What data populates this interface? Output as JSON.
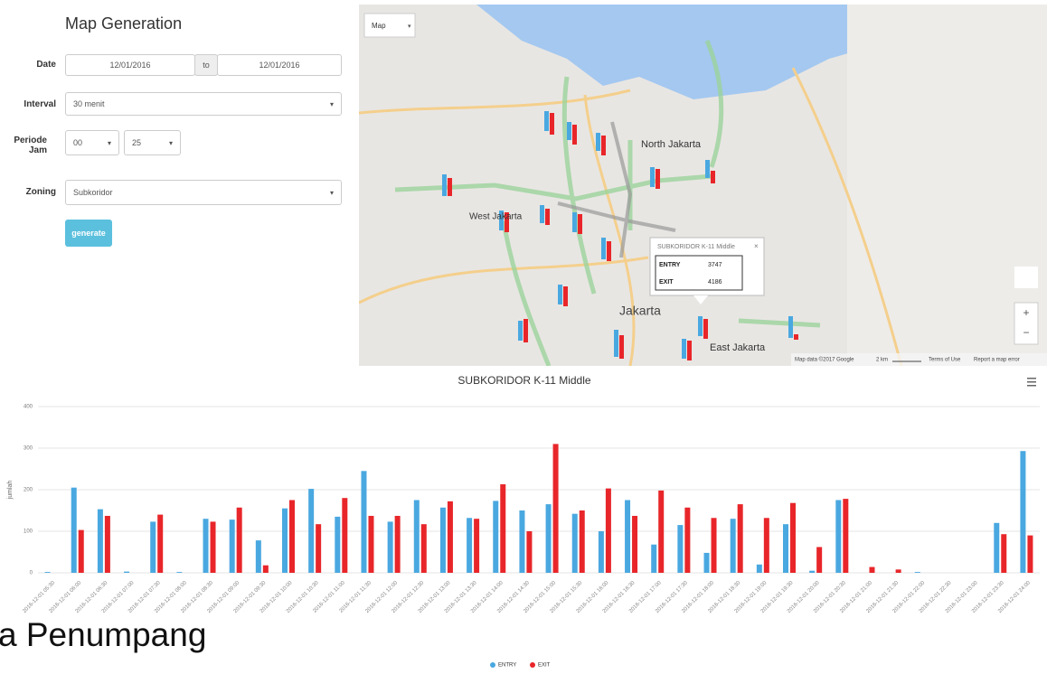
{
  "form": {
    "title": "Map Generation",
    "date_label": "Date",
    "date_from": "12/01/2016",
    "date_sep": "to",
    "date_to": "12/01/2016",
    "interval_label": "Interval",
    "interval": "30 menit",
    "period_label": "Periode Jam",
    "period_from": "00",
    "period_to": "25",
    "zoning_label": "Zoning",
    "zoning": "Subkoridor",
    "button": "generate"
  },
  "map": {
    "type_select": "Map",
    "areas": [
      "North Jakarta",
      "West Jakarta",
      "Jakarta",
      "East Jakarta"
    ],
    "popup": {
      "title": "SUBKORIDOR K-11 Middle",
      "rows": [
        [
          "ENTRY",
          "3747"
        ],
        [
          "EXIT",
          "4186"
        ]
      ]
    },
    "attribution": "Map data ©2017 Google",
    "scale": "2 km",
    "terms": "Terms of Use",
    "report": "Report a map error"
  },
  "chart_data": {
    "type": "bar",
    "title": "SUBKORIDOR K-11 Middle",
    "y_label": "jumlah",
    "categories": [
      "2016-12-01 05:30",
      "2016-12-01 06:00",
      "2016-12-01 06:30",
      "2016-12-01 07:00",
      "2016-12-01 07:30",
      "2016-12-01 08:00",
      "2016-12-01 08:30",
      "2016-12-01 09:00",
      "2016-12-01 09:30",
      "2016-12-01 10:00",
      "2016-12-01 10:30",
      "2016-12-01 11:00",
      "2016-12-01 11:30",
      "2016-12-01 12:00",
      "2016-12-01 12:30",
      "2016-12-01 13:00",
      "2016-12-01 13:30",
      "2016-12-01 14:00",
      "2016-12-01 14:30",
      "2016-12-01 15:00",
      "2016-12-01 15:30",
      "2016-12-01 16:00",
      "2016-12-01 16:30",
      "2016-12-01 17:00",
      "2016-12-01 17:30",
      "2016-12-01 18:00",
      "2016-12-01 18:30",
      "2016-12-01 19:00",
      "2016-12-01 19:30",
      "2016-12-01 20:00",
      "2016-12-01 20:30",
      "2016-12-01 21:00",
      "2016-12-01 21:30",
      "2016-12-01 22:00",
      "2016-12-01 22:30",
      "2016-12-01 23:00",
      "2016-12-01 23:30",
      "2016-12-01 24:00"
    ],
    "series": [
      {
        "name": "ENTRY",
        "color": "#4aa8e0",
        "values": [
          2,
          205,
          153,
          3,
          123,
          2,
          130,
          128,
          78,
          155,
          202,
          135,
          245,
          123,
          175,
          157,
          132,
          173,
          150,
          165,
          142,
          100,
          175,
          68,
          115,
          48,
          130,
          20,
          117,
          5,
          175,
          0,
          0,
          2,
          0,
          0,
          120,
          293
        ]
      },
      {
        "name": "EXIT",
        "color": "#e8262a",
        "values": [
          0,
          103,
          137,
          0,
          140,
          0,
          123,
          157,
          18,
          175,
          117,
          180,
          137,
          137,
          117,
          172,
          130,
          213,
          100,
          310,
          150,
          203,
          137,
          198,
          157,
          132,
          165,
          132,
          168,
          62,
          178,
          14,
          8,
          0,
          0,
          0,
          93,
          90
        ]
      }
    ],
    "ylim": [
      0,
      400
    ],
    "yticks": [
      0,
      100,
      200,
      300,
      400
    ],
    "grid": true,
    "legend": "bottom"
  },
  "caption": "a Penumpang"
}
